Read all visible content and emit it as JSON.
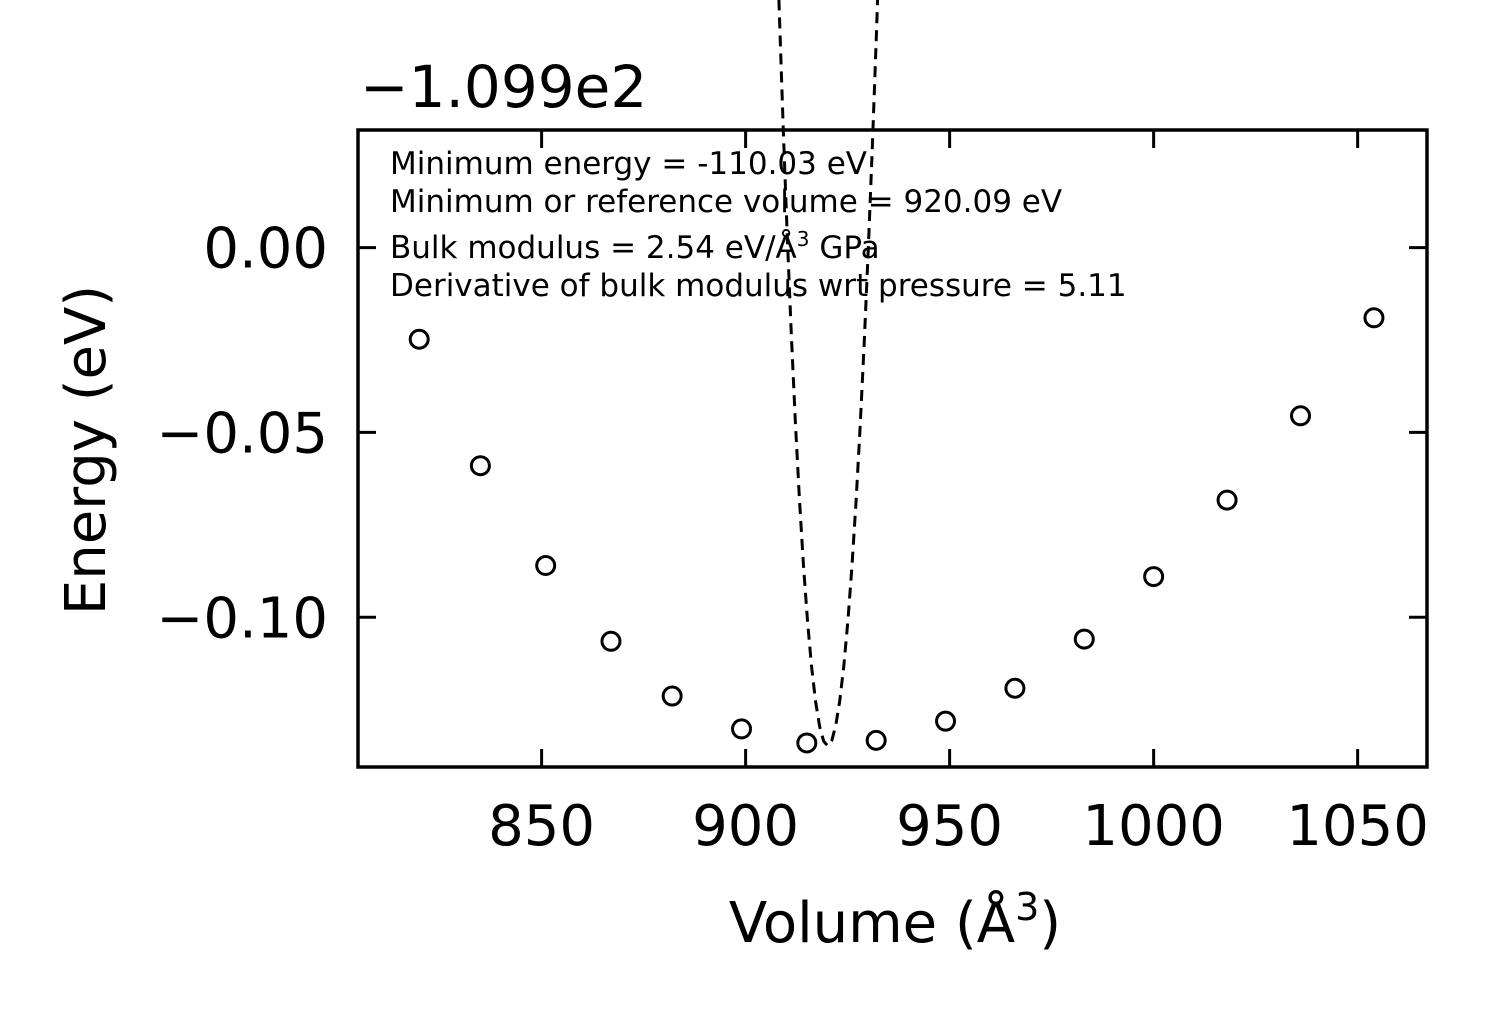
{
  "chart_data": {
    "type": "scatter",
    "xlabel": "Volume (Å",
    "xlabel_sup": "3",
    "xlabel_end": ")",
    "ylabel": "Energy (eV)",
    "y_offset_label": "−1.099e2",
    "y_offset": -109.9,
    "xlim": [
      805,
      1067
    ],
    "ylim": [
      -0.1405,
      0.0318
    ],
    "x_ticks": [
      850,
      900,
      950,
      1000,
      1050
    ],
    "x_tick_labels": [
      "850",
      "900",
      "950",
      "1000",
      "1050"
    ],
    "y_ticks": [
      0.0,
      -0.05,
      -0.1
    ],
    "y_tick_labels": [
      "0.00",
      "−0.05",
      "−0.10"
    ],
    "grid": false,
    "annotations": [
      "Minimum energy = -110.03 eV",
      "Minimum or reference volume = 920.09 eV",
      "Bulk modulus = 2.54 eV/Å",
      "Derivative of bulk modulus wrt pressure = 5.11"
    ],
    "annotation_sup": "3",
    "annotation_tail": " GPa",
    "series": [
      {
        "type": "scatter",
        "marker": "open-circle",
        "color": "#000000",
        "x": [
          820,
          835,
          851,
          867,
          882,
          899,
          915,
          932,
          949,
          966,
          983,
          1000,
          1018,
          1036,
          1054
        ],
        "y": [
          -0.0248,
          -0.059,
          -0.086,
          -0.1065,
          -0.1213,
          -0.1302,
          -0.134,
          -0.1333,
          -0.1281,
          -0.1192,
          -0.1059,
          -0.089,
          -0.0683,
          -0.0455,
          -0.019
        ]
      },
      {
        "type": "line",
        "style": "dashed",
        "color": "#000000",
        "fit": "birch-murnaghan",
        "x_range": [
          817,
          1055
        ],
        "params": {
          "e0": -0.1348,
          "v0": 920.09,
          "b0": 2.54,
          "bp": 5.11
        }
      }
    ]
  }
}
